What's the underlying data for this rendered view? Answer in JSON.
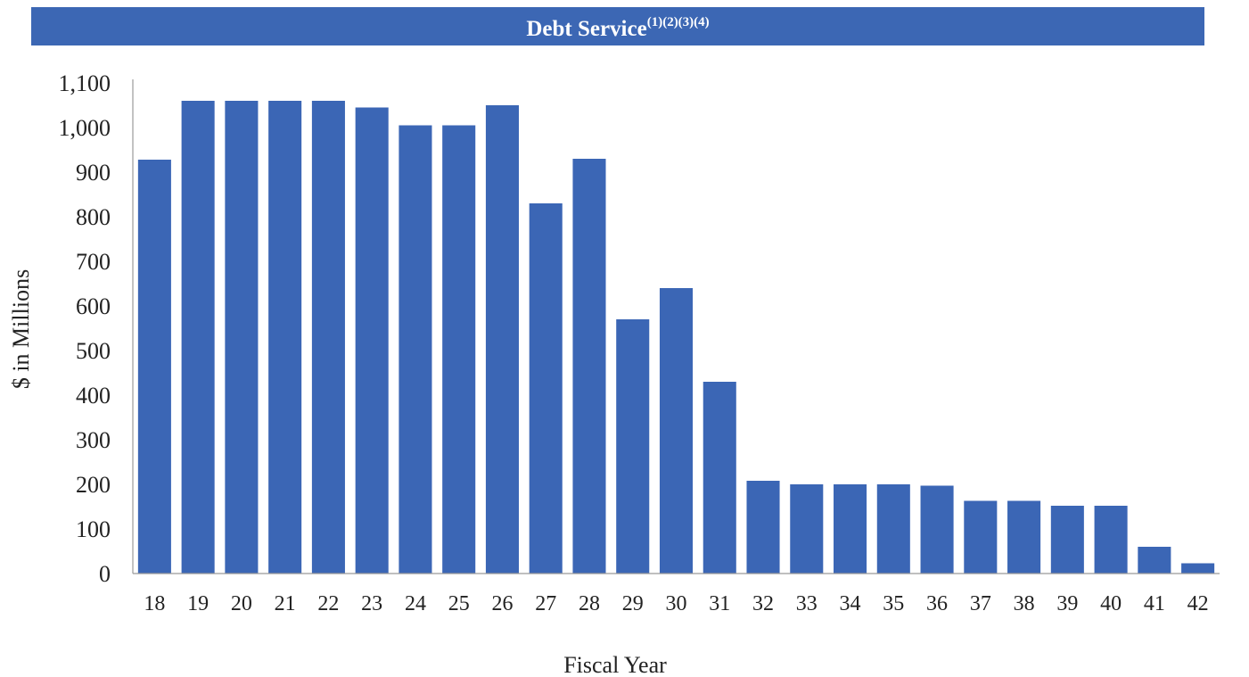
{
  "colors": {
    "bar": "#3b66b5",
    "banner": "#3c67b4",
    "axis": "#999999"
  },
  "chart_data": {
    "type": "bar",
    "title": "Debt Service",
    "title_superscript": "(1)(2)(3)(4)",
    "xlabel": "Fiscal Year",
    "ylabel": "$ in Millions",
    "ylim": [
      0,
      1100
    ],
    "yticks": [
      0,
      100,
      200,
      300,
      400,
      500,
      600,
      700,
      800,
      900,
      1000,
      1100
    ],
    "ytick_labels": [
      "0",
      "100",
      "200",
      "300",
      "400",
      "500",
      "600",
      "700",
      "800",
      "900",
      "1,000",
      "1,100"
    ],
    "grid": false,
    "categories": [
      "18",
      "19",
      "20",
      "21",
      "22",
      "23",
      "24",
      "25",
      "26",
      "27",
      "28",
      "29",
      "30",
      "31",
      "32",
      "33",
      "34",
      "35",
      "36",
      "37",
      "38",
      "39",
      "40",
      "41",
      "42"
    ],
    "values": [
      928,
      1060,
      1060,
      1060,
      1060,
      1045,
      1005,
      1005,
      1050,
      830,
      930,
      570,
      640,
      430,
      208,
      200,
      200,
      200,
      197,
      163,
      163,
      152,
      152,
      60,
      23
    ]
  }
}
